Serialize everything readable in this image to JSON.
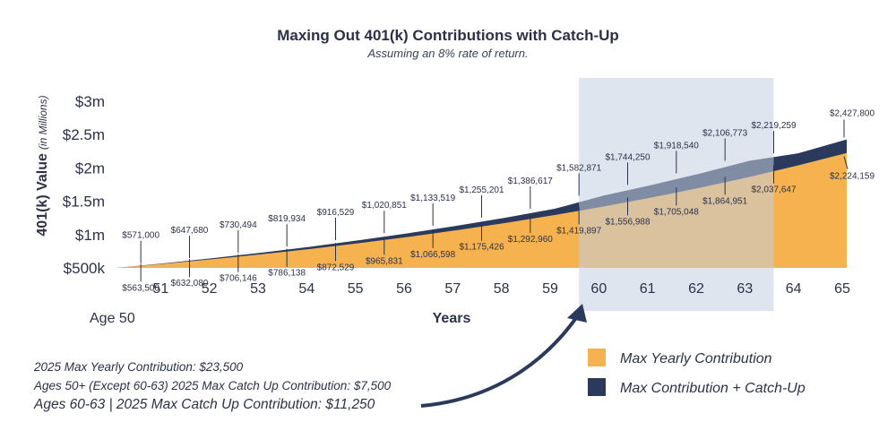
{
  "chart_data": {
    "type": "area",
    "title": "Maxing Out 401(k) Contributions with Catch-Up",
    "subtitle": "Assuming an 8% rate of return.",
    "xlabel": "Years",
    "ylabel": "401(k) Value",
    "ylabel_unit": "(in Millions)",
    "x_start_label": "Age 50",
    "categories": [
      "51",
      "52",
      "53",
      "54",
      "55",
      "56",
      "57",
      "58",
      "59",
      "60",
      "61",
      "62",
      "63",
      "64",
      "65"
    ],
    "y_ticks": [
      "$500k",
      "$1m",
      "$1.5m",
      "$2m",
      "$2.5m",
      "$3m"
    ],
    "y_tick_values": [
      500000,
      1000000,
      1500000,
      2000000,
      2500000,
      3000000
    ],
    "ylim": [
      500000,
      3100000
    ],
    "start_value": 500000,
    "highlight_range": [
      "60",
      "63"
    ],
    "series": [
      {
        "name": "Max Yearly Contribution",
        "color": "#f5b24f",
        "values": [
          563500,
          632080,
          706146,
          786138,
          872529,
          965831,
          1066598,
          1175426,
          1292960,
          1419897,
          1556988,
          1705048,
          1864951,
          2037647,
          2224159
        ],
        "labels": [
          "$563,500",
          "$632,080",
          "$706,146",
          "$786,138",
          "$872,529",
          "$965,831",
          "$1,066,598",
          "$1,175,426",
          "$1,292,960",
          "$1,419,897",
          "$1,556,988",
          "$1,705,048",
          "$1,864,951",
          "$2,037,647",
          "$2,224,159"
        ]
      },
      {
        "name": "Max Contribution + Catch-Up",
        "color": "#2b3a5c",
        "values": [
          571000,
          647680,
          730494,
          819934,
          916529,
          1020851,
          1133519,
          1255201,
          1386617,
          1582871,
          1744250,
          1918540,
          2106773,
          2219259,
          2427800
        ],
        "labels": [
          "$571,000",
          "$647,680",
          "$730,494",
          "$819,934",
          "$916,529",
          "$1,020,851",
          "$1,133,519",
          "$1,255,201",
          "$1,386,617",
          "$1,582,871",
          "$1,744,250",
          "$1,918,540",
          "$2,106,773",
          "$2,219,259",
          "$2,427,800"
        ]
      }
    ],
    "legend_position": "bottom-right",
    "grid": false
  },
  "notes": [
    {
      "label": "2025 Max Yearly Contribution:",
      "value": "$23,500"
    },
    {
      "label": "Ages 50+ (Except 60-63) 2025 Max Catch Up Contribution:",
      "value": "$7,500"
    },
    {
      "label": "Ages 60-63 | 2025 Max Catch Up Contribution:",
      "value": "$11,250"
    }
  ]
}
